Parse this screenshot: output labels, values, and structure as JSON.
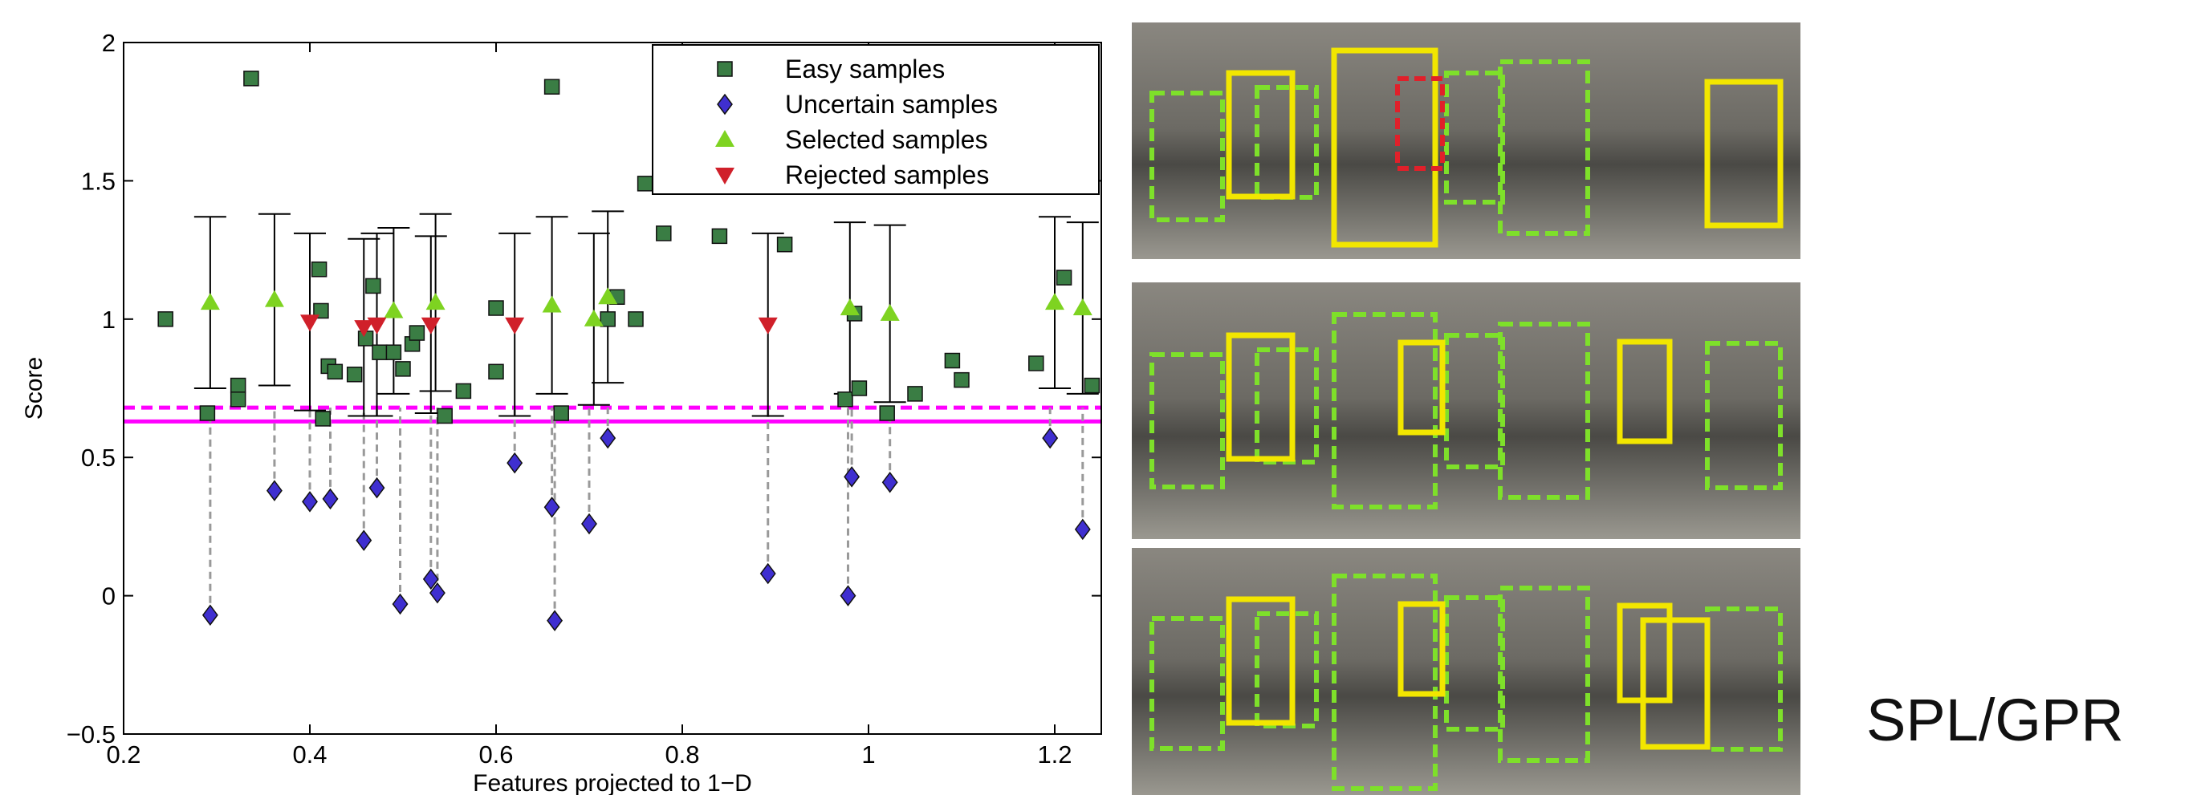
{
  "chart_data": {
    "type": "scatter",
    "xlabel": "Features projected to 1−D",
    "ylabel": "Score",
    "xlim": [
      0.2,
      1.25
    ],
    "ylim": [
      -0.5,
      2
    ],
    "xticks": [
      0.2,
      0.4,
      0.6,
      0.8,
      1,
      1.2
    ],
    "yticks": [
      {
        "value": -0.5,
        "label": "−0.5"
      },
      0,
      0.5,
      1,
      1.5,
      2
    ],
    "legend": "upper right",
    "thresholds": [
      {
        "value": 0.63,
        "style": "solid",
        "color": "#ff00ff"
      },
      {
        "value": 0.68,
        "style": "dashed",
        "color": "#ff00ff"
      }
    ],
    "series": [
      {
        "name": "Easy samples",
        "marker": "square",
        "color": "#3a7d44",
        "x": [
          0.245,
          0.29,
          0.323,
          0.323,
          0.337,
          0.41,
          0.412,
          0.414,
          0.42,
          0.427,
          0.448,
          0.46,
          0.468,
          0.475,
          0.49,
          0.5,
          0.51,
          0.515,
          0.545,
          0.565,
          0.6,
          0.6,
          0.66,
          0.67,
          0.72,
          0.73,
          0.75,
          0.76,
          0.78,
          0.84,
          0.91,
          0.975,
          0.985,
          0.99,
          1.02,
          1.05,
          1.09,
          1.1,
          1.18,
          1.21,
          1.24
        ],
        "values": [
          1.0,
          0.66,
          0.76,
          0.71,
          1.87,
          1.18,
          1.03,
          0.64,
          0.83,
          0.81,
          0.8,
          0.93,
          1.12,
          0.88,
          0.88,
          0.82,
          0.91,
          0.95,
          0.65,
          0.74,
          0.81,
          1.04,
          1.84,
          0.66,
          1.0,
          1.08,
          1.0,
          1.49,
          1.31,
          1.3,
          1.27,
          0.71,
          1.02,
          0.75,
          0.66,
          0.73,
          0.85,
          0.78,
          0.84,
          1.15,
          0.76
        ]
      },
      {
        "name": "Uncertain samples",
        "marker": "diamond",
        "color": "#3f2fd0",
        "x": [
          0.293,
          0.362,
          0.4,
          0.422,
          0.458,
          0.472,
          0.497,
          0.53,
          0.537,
          0.62,
          0.66,
          0.663,
          0.7,
          0.72,
          0.892,
          0.978,
          0.982,
          1.023,
          1.195,
          1.23
        ],
        "values": [
          -0.07,
          0.38,
          0.34,
          0.35,
          0.2,
          0.39,
          -0.03,
          0.06,
          0.01,
          0.48,
          0.32,
          -0.09,
          0.26,
          0.57,
          0.08,
          0.0,
          0.43,
          0.41,
          0.57,
          0.24
        ]
      },
      {
        "name": "Selected samples",
        "marker": "triangle-up",
        "color": "#7ed321",
        "x": [
          0.293,
          0.362,
          0.49,
          0.535,
          0.66,
          0.705,
          0.72,
          0.98,
          1.023,
          1.2,
          1.23
        ],
        "values": [
          1.06,
          1.07,
          1.03,
          1.06,
          1.05,
          1.0,
          1.08,
          1.04,
          1.02,
          1.06,
          1.04
        ],
        "errors": [
          0.31,
          0.31,
          0.3,
          0.32,
          0.32,
          0.31,
          0.31,
          0.31,
          0.32,
          0.31,
          0.31
        ]
      },
      {
        "name": "Rejected samples",
        "marker": "triangle-down",
        "color": "#d0202a",
        "x": [
          0.4,
          0.458,
          0.472,
          0.53,
          0.62,
          0.892
        ],
        "values": [
          0.99,
          0.97,
          0.98,
          0.98,
          0.98,
          0.98
        ],
        "errors": [
          0.32,
          0.32,
          0.33,
          0.32,
          0.33,
          0.33
        ]
      }
    ]
  },
  "side_label": "SPL/GPR"
}
